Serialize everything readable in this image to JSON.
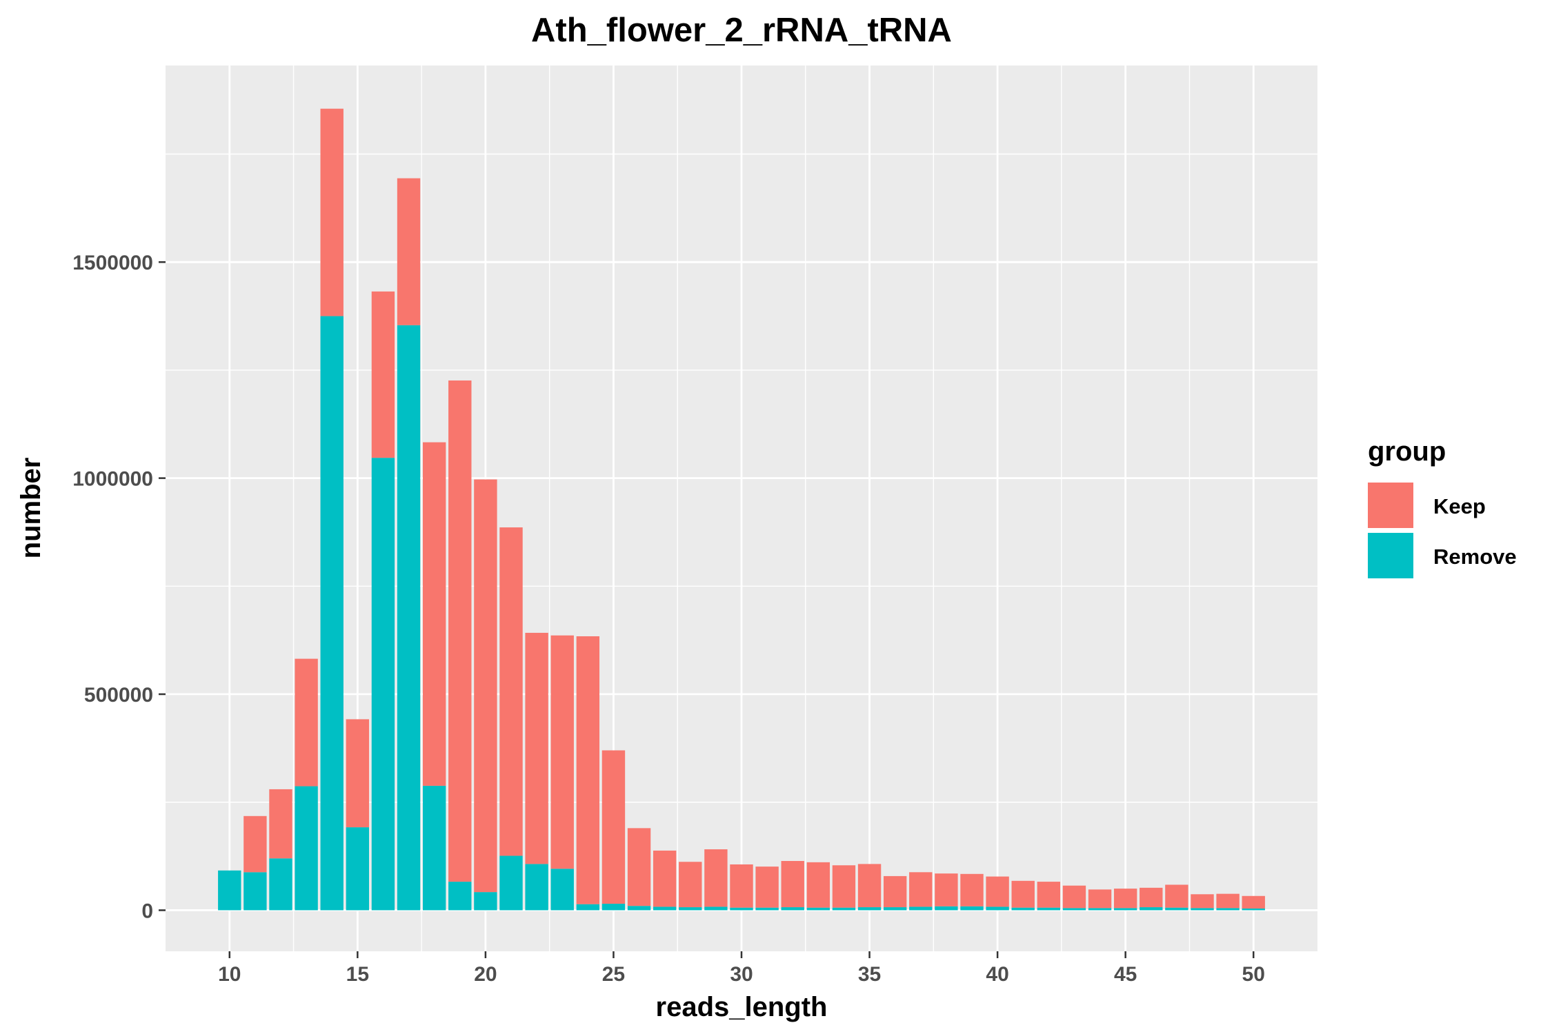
{
  "chart_data": {
    "type": "bar",
    "stacked": true,
    "title": "Ath_flower_2_rRNA_tRNA",
    "xlabel": "reads_length",
    "ylabel": "number",
    "x": [
      10,
      11,
      12,
      13,
      14,
      15,
      16,
      17,
      18,
      19,
      20,
      21,
      22,
      23,
      24,
      25,
      26,
      27,
      28,
      29,
      30,
      31,
      32,
      33,
      34,
      35,
      36,
      37,
      38,
      39,
      40,
      41,
      42,
      43,
      44,
      45,
      46,
      47,
      48,
      49,
      50
    ],
    "x_ticks": [
      10,
      15,
      20,
      25,
      30,
      35,
      40,
      45,
      50
    ],
    "xlim": [
      7.5,
      52.5
    ],
    "y_ticks": [
      0,
      500000,
      1000000,
      1500000
    ],
    "y_tick_labels": [
      "0",
      "500000",
      "1000000",
      "1500000"
    ],
    "ylim": [
      -95000,
      1955000
    ],
    "grid": true,
    "legend": {
      "title": "group",
      "position": "right",
      "entries": [
        "Keep",
        "Remove"
      ]
    },
    "series": [
      {
        "name": "Keep",
        "color": "#F8766D",
        "values": [
          0,
          130000,
          160000,
          295000,
          480000,
          250000,
          385000,
          340000,
          795000,
          1160000,
          955000,
          760000,
          535000,
          540000,
          620000,
          355000,
          180000,
          130000,
          105000,
          133000,
          100000,
          95000,
          107000,
          105000,
          98000,
          100000,
          72000,
          80000,
          76000,
          75000,
          70000,
          62000,
          60000,
          52000,
          43000,
          45000,
          45000,
          53000,
          32000,
          33000,
          29000
        ]
      },
      {
        "name": "Remove",
        "color": "#00BFC4",
        "values": [
          92000,
          88000,
          120000,
          287000,
          1375000,
          192000,
          1047000,
          1354000,
          288000,
          66000,
          42000,
          126000,
          107000,
          96000,
          14000,
          15000,
          10000,
          8000,
          7000,
          8000,
          6000,
          6000,
          7000,
          6000,
          6000,
          7000,
          7000,
          8000,
          9000,
          9000,
          8000,
          6000,
          6000,
          5000,
          5000,
          5000,
          7000,
          6000,
          5000,
          5000,
          4000
        ]
      }
    ]
  }
}
